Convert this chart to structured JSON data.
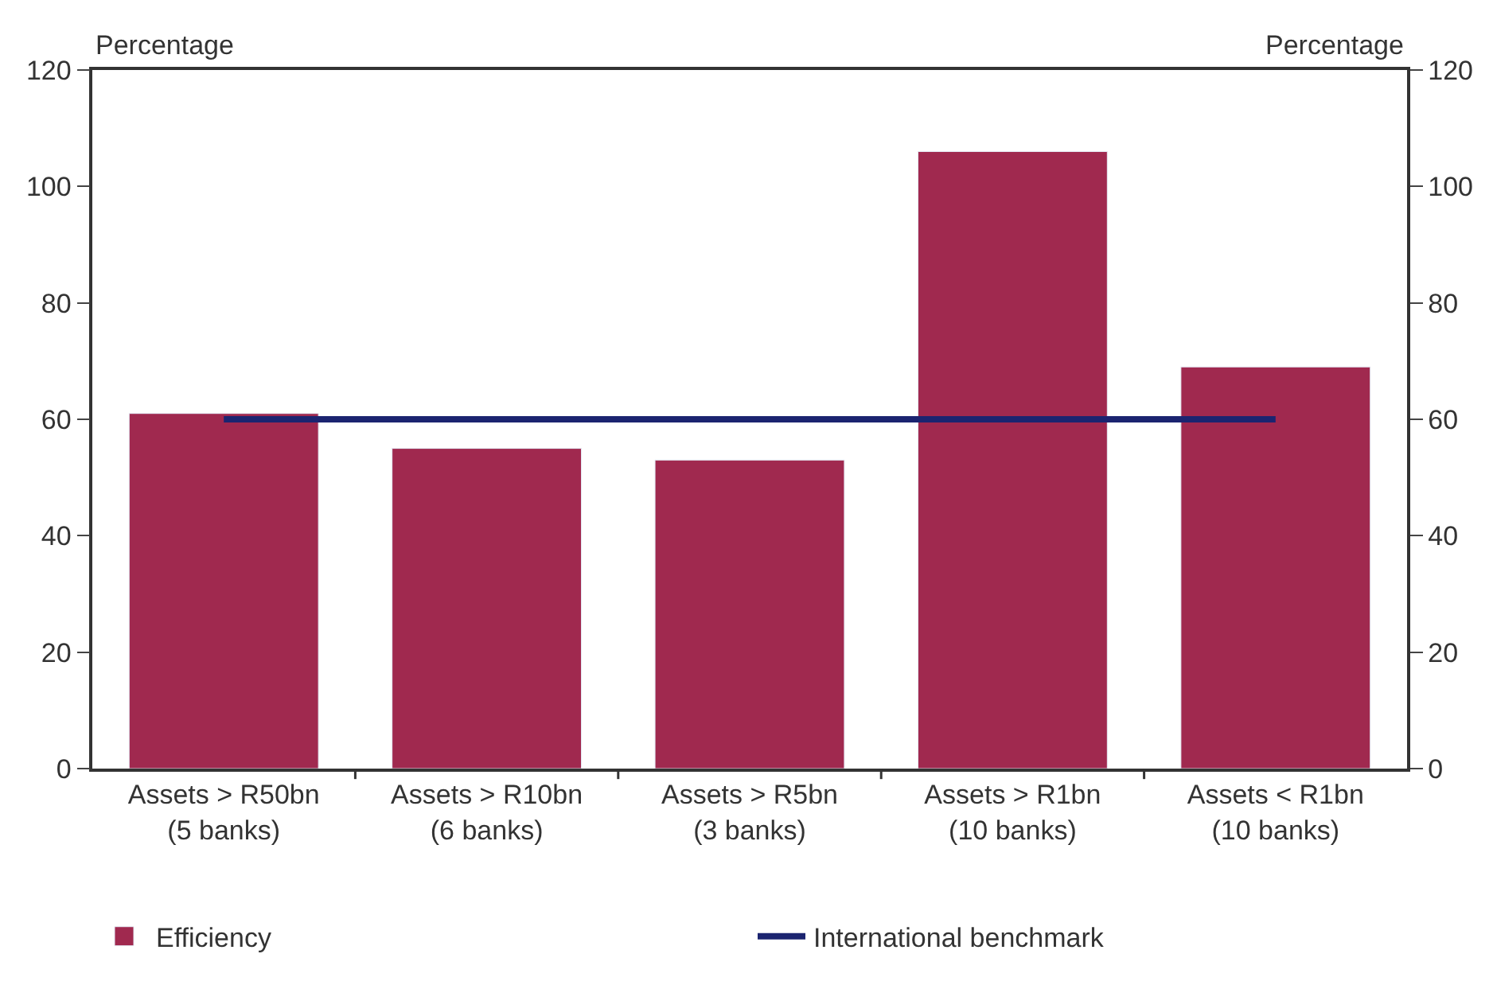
{
  "chart_data": {
    "type": "bar",
    "ylabel": "Percentage",
    "y2label": "Percentage",
    "categories": [
      "Assets > R50bn (5 banks)",
      "Assets > R10bn (6 banks)",
      "Assets > R5bn (3 banks)",
      "Assets > R1bn (10 banks)",
      "Assets < R1bn (10 banks)"
    ],
    "series": [
      {
        "name": "Efficiency",
        "color": "#a0294f",
        "values": [
          61,
          55,
          53,
          106,
          69
        ]
      },
      {
        "name": "International benchmark",
        "type": "line",
        "color": "#1b2470",
        "values": [
          60,
          60,
          60,
          60,
          60
        ],
        "marker": "none"
      }
    ],
    "ylim": [
      0,
      120
    ],
    "yticks": [
      0,
      20,
      40,
      60,
      80,
      100,
      120
    ],
    "y2lim": [
      0,
      120
    ],
    "y2ticks": [
      0,
      20,
      40,
      60,
      80,
      100,
      120
    ],
    "legend": "bottom"
  }
}
